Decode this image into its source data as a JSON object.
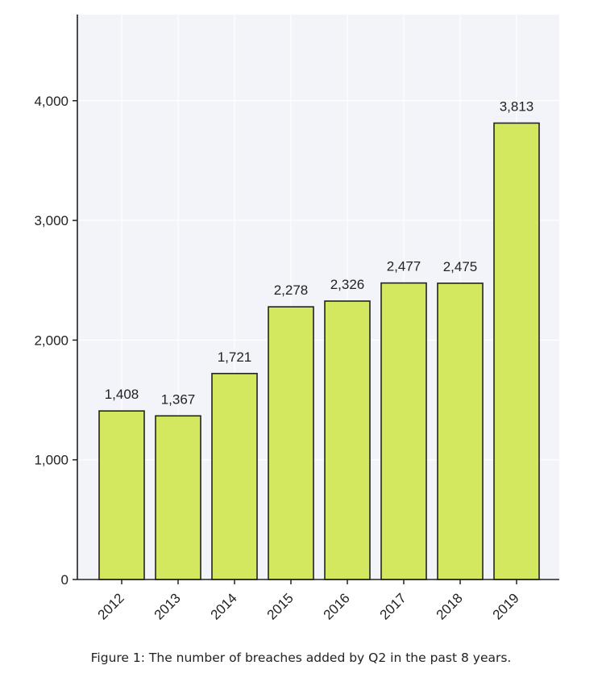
{
  "chart_data": {
    "type": "bar",
    "categories": [
      "2012",
      "2013",
      "2014",
      "2015",
      "2016",
      "2017",
      "2018",
      "2019"
    ],
    "values": [
      1408,
      1367,
      1721,
      2278,
      2326,
      2477,
      2475,
      3813
    ],
    "data_labels": [
      "1,408",
      "1,367",
      "1,721",
      "2,278",
      "2,326",
      "2,477",
      "2,475",
      "3,813"
    ],
    "yticks": [
      0,
      1000,
      2000,
      3000,
      4000
    ],
    "ytick_labels": [
      "0",
      "1,000",
      "2,000",
      "3,000",
      "4,000"
    ],
    "ylim": [
      0,
      4720
    ],
    "grid": true,
    "title": "",
    "xlabel": "",
    "ylabel": "",
    "colors": {
      "bar_fill": "#d4e85f",
      "bar_stroke": "#222222",
      "plot_background": "#f3f4f9",
      "grid": "#ffffff",
      "axis": "#222222"
    }
  },
  "caption": "Figure 1: The number of breaches added by Q2 in the past 8 years."
}
